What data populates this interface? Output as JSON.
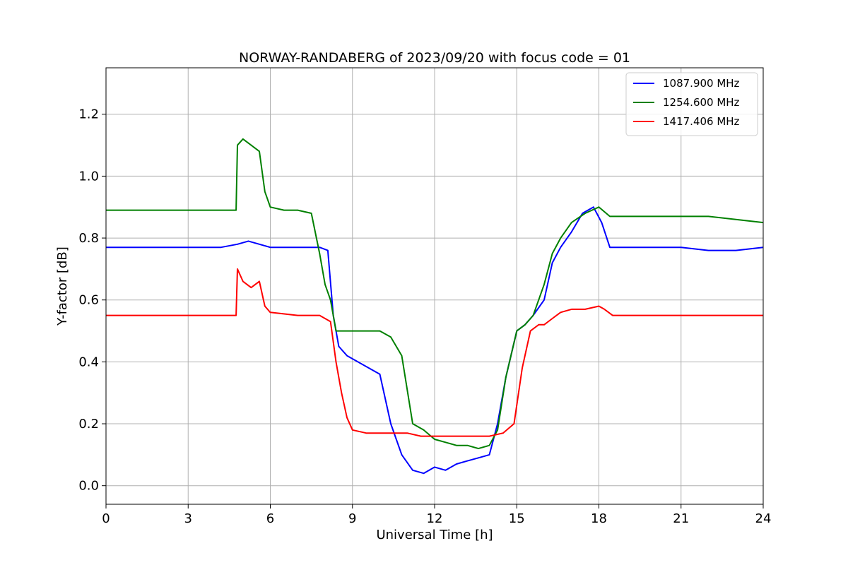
{
  "chart_data": {
    "type": "line",
    "title": "NORWAY-RANDABERG of 2023/09/20 with focus code = 01",
    "xlabel": "Universal Time [h]",
    "ylabel": "Y-factor [dB]",
    "xlim": [
      0,
      24
    ],
    "ylim": [
      -0.06,
      1.35
    ],
    "xticks": [
      0,
      3,
      6,
      9,
      12,
      15,
      18,
      21,
      24
    ],
    "yticks": [
      0.0,
      0.2,
      0.4,
      0.6,
      0.8,
      1.0,
      1.2
    ],
    "xtick_labels": [
      "0",
      "3",
      "6",
      "9",
      "12",
      "15",
      "18",
      "21",
      "24"
    ],
    "ytick_labels": [
      "0.0",
      "0.2",
      "0.4",
      "0.6",
      "0.8",
      "1.0",
      "1.2"
    ],
    "grid": true,
    "legend_position": "top-right",
    "series": [
      {
        "name": "1087.900 MHz",
        "color": "#0000ff",
        "x": [
          0,
          0.5,
          1,
          2,
          3,
          3.8,
          4.2,
          4.8,
          5.2,
          5.6,
          6,
          7,
          7.8,
          8.1,
          8.3,
          8.5,
          8.8,
          9.2,
          9.6,
          10.0,
          10.4,
          10.8,
          11.2,
          11.6,
          12.0,
          12.4,
          12.8,
          13.2,
          13.6,
          14.0,
          14.3,
          14.6,
          15.0,
          15.3,
          15.6,
          16.0,
          16.3,
          16.6,
          17.0,
          17.4,
          17.8,
          18.1,
          18.4,
          19,
          20,
          21,
          22,
          23,
          24
        ],
        "y": [
          0.77,
          0.77,
          0.77,
          0.77,
          0.77,
          0.77,
          0.77,
          0.78,
          0.79,
          0.78,
          0.77,
          0.77,
          0.77,
          0.76,
          0.55,
          0.45,
          0.42,
          0.4,
          0.38,
          0.36,
          0.2,
          0.1,
          0.05,
          0.04,
          0.06,
          0.05,
          0.07,
          0.08,
          0.09,
          0.1,
          0.2,
          0.35,
          0.5,
          0.52,
          0.55,
          0.6,
          0.72,
          0.77,
          0.82,
          0.88,
          0.9,
          0.85,
          0.77,
          0.77,
          0.77,
          0.77,
          0.76,
          0.76,
          0.77
        ]
      },
      {
        "name": "1254.600 MHz",
        "color": "#008000",
        "x": [
          0,
          1,
          2,
          3,
          4,
          4.75,
          4.8,
          5.0,
          5.3,
          5.6,
          5.8,
          6.0,
          6.5,
          7.0,
          7.5,
          7.8,
          8.0,
          8.2,
          8.4,
          8.8,
          9.2,
          9.6,
          10.0,
          10.4,
          10.8,
          11.2,
          11.6,
          12.0,
          12.4,
          12.8,
          13.2,
          13.6,
          14.0,
          14.3,
          14.6,
          15.0,
          15.3,
          15.6,
          16.0,
          16.3,
          16.6,
          17.0,
          17.5,
          18.0,
          18.4,
          19,
          20,
          21,
          22,
          23,
          24
        ],
        "y": [
          0.89,
          0.89,
          0.89,
          0.89,
          0.89,
          0.89,
          1.1,
          1.12,
          1.1,
          1.08,
          0.95,
          0.9,
          0.89,
          0.89,
          0.88,
          0.75,
          0.65,
          0.6,
          0.5,
          0.5,
          0.5,
          0.5,
          0.5,
          0.48,
          0.42,
          0.2,
          0.18,
          0.15,
          0.14,
          0.13,
          0.13,
          0.12,
          0.13,
          0.18,
          0.35,
          0.5,
          0.52,
          0.55,
          0.65,
          0.75,
          0.8,
          0.85,
          0.88,
          0.9,
          0.87,
          0.87,
          0.87,
          0.87,
          0.87,
          0.86,
          0.85
        ]
      },
      {
        "name": "1417.406 MHz",
        "color": "#ff0000",
        "x": [
          0,
          1,
          2,
          3,
          4,
          4.75,
          4.8,
          5.0,
          5.3,
          5.6,
          5.8,
          6.0,
          7.0,
          7.8,
          8.2,
          8.4,
          8.6,
          8.8,
          9.0,
          9.5,
          10.0,
          10.5,
          11.0,
          11.5,
          12.0,
          12.5,
          13.0,
          13.5,
          14.0,
          14.5,
          14.9,
          15.2,
          15.5,
          15.8,
          16.0,
          16.3,
          16.6,
          17.0,
          17.5,
          18.0,
          18.2,
          18.5,
          19,
          20,
          21,
          22,
          23,
          24
        ],
        "y": [
          0.55,
          0.55,
          0.55,
          0.55,
          0.55,
          0.55,
          0.7,
          0.66,
          0.64,
          0.66,
          0.58,
          0.56,
          0.55,
          0.55,
          0.53,
          0.4,
          0.3,
          0.22,
          0.18,
          0.17,
          0.17,
          0.17,
          0.17,
          0.16,
          0.16,
          0.16,
          0.16,
          0.16,
          0.16,
          0.17,
          0.2,
          0.38,
          0.5,
          0.52,
          0.52,
          0.54,
          0.56,
          0.57,
          0.57,
          0.58,
          0.57,
          0.55,
          0.55,
          0.55,
          0.55,
          0.55,
          0.55,
          0.55
        ]
      }
    ]
  }
}
